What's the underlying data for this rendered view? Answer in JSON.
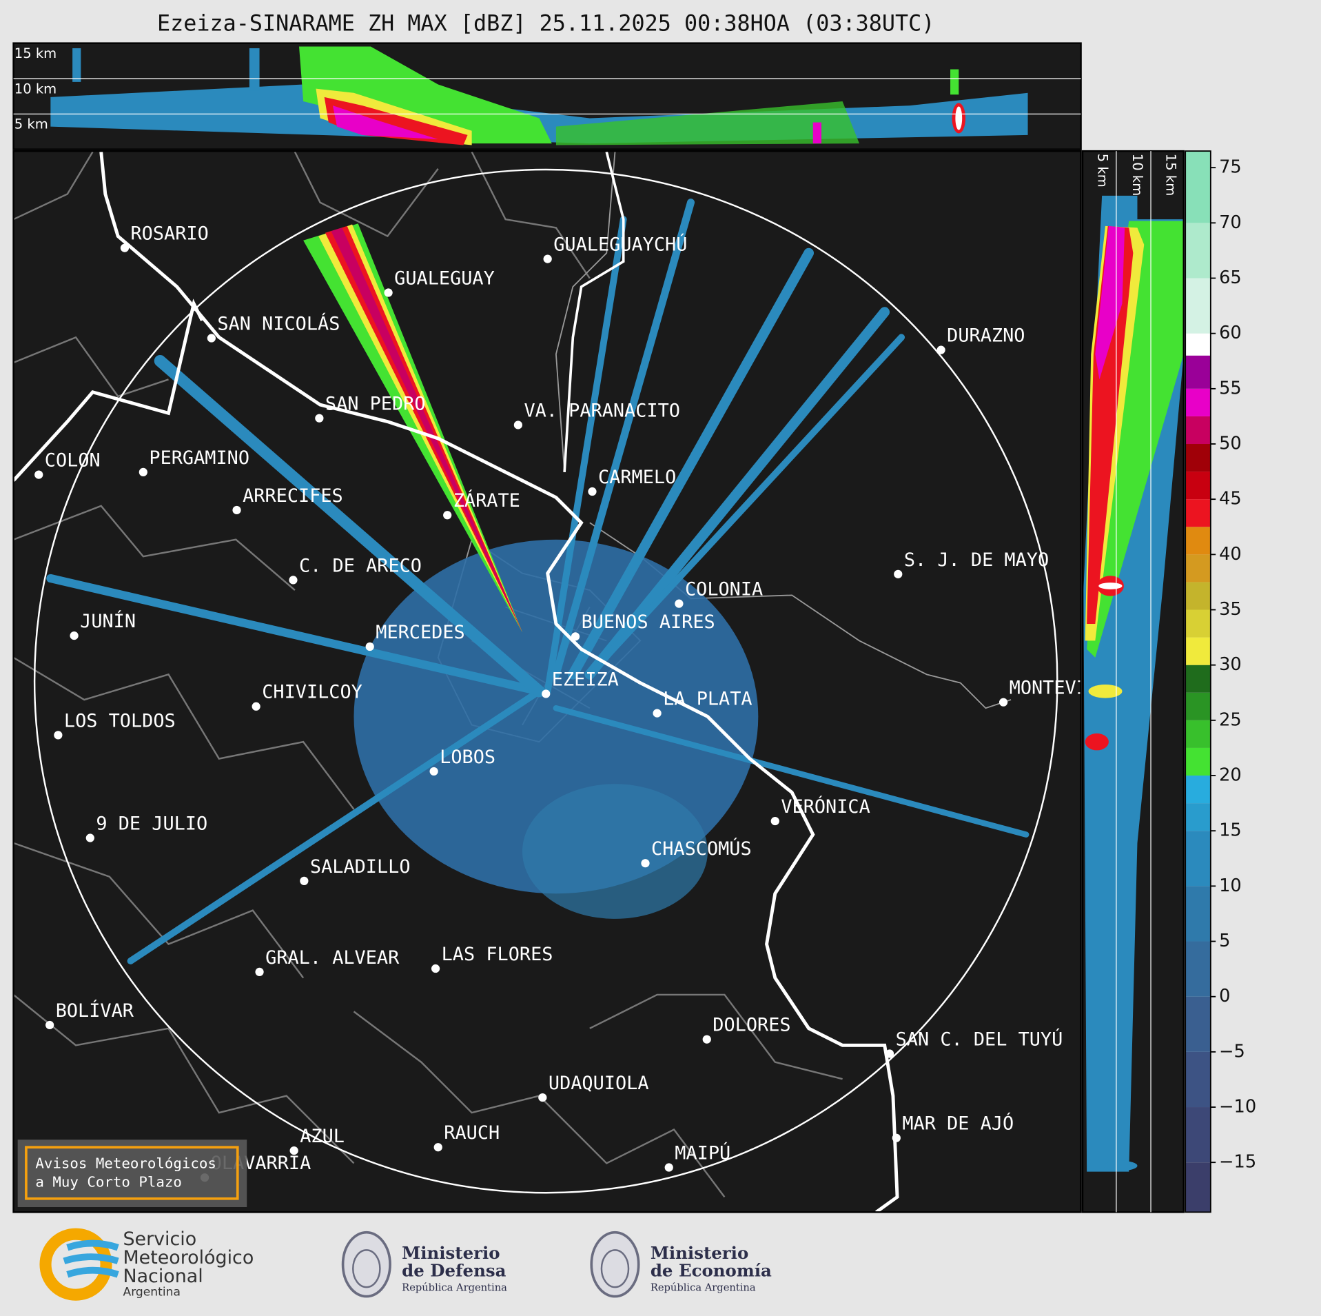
{
  "header": {
    "title": "Ezeiza-SINARAME ZH MAX [dBZ] 25.11.2025 00:38HOA (03:38UTC)"
  },
  "profile_top": {
    "height_labels": [
      "15 km",
      "10 km",
      "5 km"
    ]
  },
  "profile_right": {
    "height_labels": [
      "5 km",
      "10 km",
      "15 km"
    ]
  },
  "map": {
    "cities": [
      "ROSARIO",
      "GUALEGUAYCHÚ",
      "GUALEGUAY",
      "SAN NICOLÁS",
      "DURAZNO",
      "SAN PEDRO",
      "VA. PARANACITO",
      "COLON",
      "PERGAMINO",
      "CARMELO",
      "ARRECIFES",
      "ZÁRATE",
      "C. DE ARECO",
      "S. J. DE MAYO",
      "COLONIA",
      "BUENOS AIRES",
      "JUNÍN",
      "MERCEDES",
      "EZEIZA",
      "MONTEVIDEO",
      "CHIVILCOY",
      "LA PLATA",
      "LOS TOLDOS",
      "LOBOS",
      "VERÓNICA",
      "9 DE JULIO",
      "CHASCOMÚS",
      "SALADILLO",
      "GRAL. ALVEAR",
      "LAS FLORES",
      "BOLÍVAR",
      "DOLORES",
      "SAN C. DEL TUYÚ",
      "UDAQUIOLA",
      "MAR DE AJÓ",
      "AZUL",
      "RAUCH",
      "OLAVARRÍA",
      "MAIPÚ"
    ]
  },
  "warning": {
    "lines": [
      "Avisos Meteorológicos",
      "a Muy Corto Plazo"
    ]
  },
  "colorbar": {
    "lim": [
      -19.5,
      76.5
    ],
    "ticks": [
      75,
      70,
      65,
      60,
      55,
      50,
      45,
      40,
      35,
      30,
      25,
      20,
      15,
      10,
      5,
      0,
      {
        "value": -5,
        "label": "−5"
      },
      {
        "value": -10,
        "label": "−10"
      },
      {
        "value": -15,
        "label": "−15"
      }
    ],
    "bands": [
      {
        "from": -19.5,
        "to": -15,
        "color": "#3b3e6a"
      },
      {
        "from": -15,
        "to": -10,
        "color": "#3d4877"
      },
      {
        "from": -10,
        "to": -5,
        "color": "#3d5384"
      },
      {
        "from": -5,
        "to": 0,
        "color": "#3a5f90"
      },
      {
        "from": 0,
        "to": 5,
        "color": "#356c9d"
      },
      {
        "from": 5,
        "to": 10,
        "color": "#2f7aab"
      },
      {
        "from": 10,
        "to": 15,
        "color": "#2b8abd"
      },
      {
        "from": 15,
        "to": 17.5,
        "color": "#299ccd"
      },
      {
        "from": 17.5,
        "to": 20,
        "color": "#28acde"
      },
      {
        "from": 20,
        "to": 22.5,
        "color": "#44e232"
      },
      {
        "from": 22.5,
        "to": 25,
        "color": "#38c02c"
      },
      {
        "from": 25,
        "to": 27.5,
        "color": "#2a9424"
      },
      {
        "from": 27.5,
        "to": 30,
        "color": "#1f6c1c"
      },
      {
        "from": 30,
        "to": 32.5,
        "color": "#f0ea3c"
      },
      {
        "from": 32.5,
        "to": 35,
        "color": "#d8d034"
      },
      {
        "from": 35,
        "to": 37.5,
        "color": "#c4b42c"
      },
      {
        "from": 37.5,
        "to": 40,
        "color": "#d49a20"
      },
      {
        "from": 40,
        "to": 42.5,
        "color": "#e08a10"
      },
      {
        "from": 42.5,
        "to": 45,
        "color": "#ec1420"
      },
      {
        "from": 45,
        "to": 47.5,
        "color": "#c80010"
      },
      {
        "from": 47.5,
        "to": 50,
        "color": "#a00008"
      },
      {
        "from": 50,
        "to": 52.5,
        "color": "#c80060"
      },
      {
        "from": 52.5,
        "to": 55,
        "color": "#e800c8"
      },
      {
        "from": 55,
        "to": 58,
        "color": "#9a0098"
      },
      {
        "from": 58,
        "to": 60,
        "color": "#ffffff"
      },
      {
        "from": 60,
        "to": 65,
        "color": "#d4f2e4"
      },
      {
        "from": 65,
        "to": 70,
        "color": "#aeeacc"
      },
      {
        "from": 70,
        "to": 76.5,
        "color": "#88e0b8"
      }
    ]
  },
  "footer": {
    "smn": [
      "Servicio",
      "Meteorológico",
      "Nacional",
      "Argentina"
    ],
    "defensa": [
      "Ministerio",
      "de Defensa",
      "República Argentina"
    ],
    "economia": [
      "Ministerio",
      "de Economía",
      "República Argentina"
    ]
  }
}
